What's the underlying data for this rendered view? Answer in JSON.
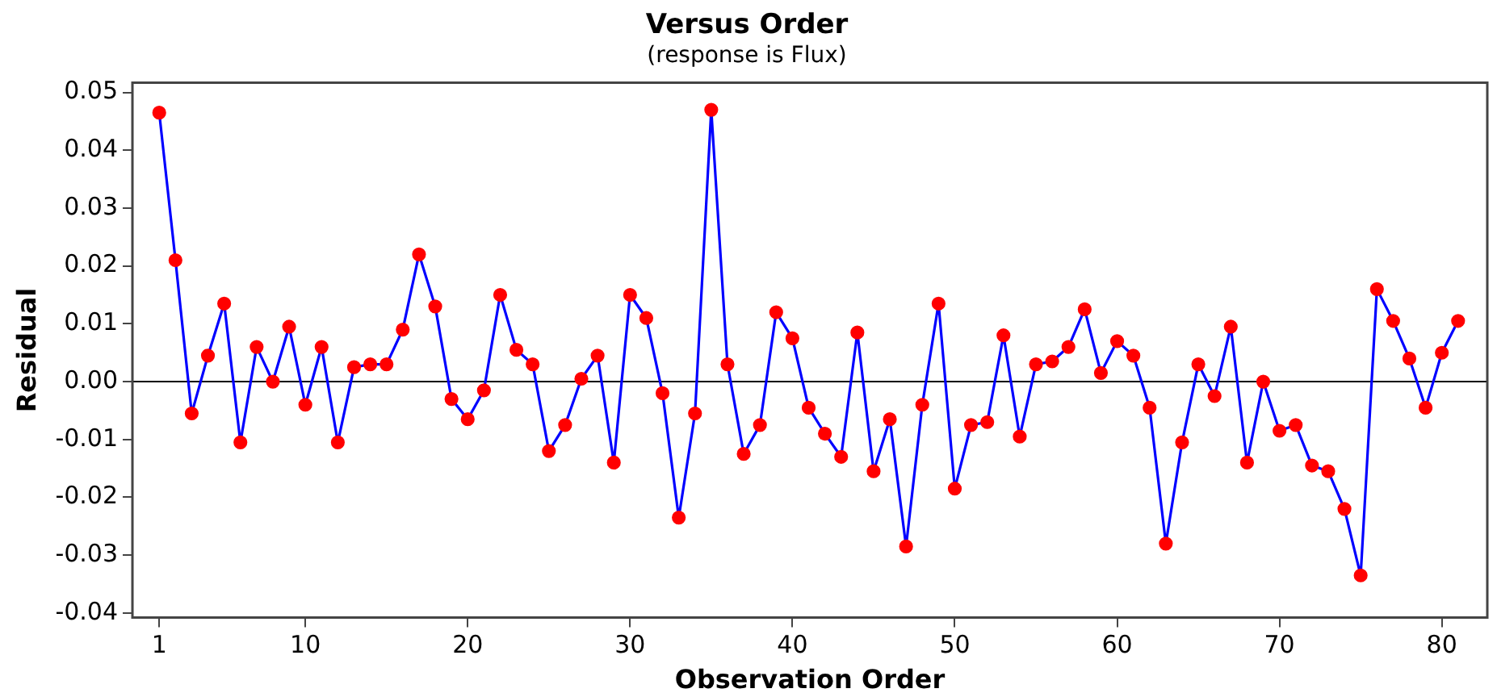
{
  "chart_data": {
    "type": "line",
    "title": "Versus Order",
    "subtitle": "(response is Flux)",
    "xlabel": "Observation Order",
    "ylabel": "Residual",
    "x": [
      1,
      2,
      3,
      4,
      5,
      6,
      7,
      8,
      9,
      10,
      11,
      12,
      13,
      14,
      15,
      16,
      17,
      18,
      19,
      20,
      21,
      22,
      23,
      24,
      25,
      26,
      27,
      28,
      29,
      30,
      31,
      32,
      33,
      34,
      35,
      36,
      37,
      38,
      39,
      40,
      41,
      42,
      43,
      44,
      45,
      46,
      47,
      48,
      49,
      50,
      51,
      52,
      53,
      54,
      55,
      56,
      57,
      58,
      59,
      60,
      61,
      62,
      63,
      64,
      65,
      66,
      67,
      68,
      69,
      70,
      71,
      72,
      73,
      74,
      75,
      76,
      77,
      78,
      79,
      80,
      81
    ],
    "series": [
      {
        "color": "#0000ff",
        "colors": [
          "#ff0000",
          "#ff0000",
          "#ff0000",
          "#ff0000",
          "#ff0000",
          "#ff0000",
          "#ff0000",
          "#ff0000",
          "#ff0000",
          "#ff0000",
          "#ff0000",
          "#ff0000",
          "#ff0000",
          "#ff0000",
          "#ff0000",
          "#ff0000",
          "#ff0000",
          "#ff0000",
          "#ff0000",
          "#ff0000",
          "#ff0000",
          "#ff0000",
          "#ff0000",
          "#ff0000",
          "#ff0000",
          "#ff0000",
          "#ff0000",
          "#ff0000",
          "#ff0000",
          "#ff0000",
          "#ff0000",
          "#ff0000",
          "#ff0000",
          "#ff0000",
          "#ff0000",
          "#ff0000",
          "#ff0000",
          "#ff0000",
          "#ff0000",
          "#ff0000",
          "#ff0000",
          "#ff0000",
          "#ff0000",
          "#ff0000",
          "#ff0000",
          "#ff0000",
          "#ff0000",
          "#ff0000",
          "#ff0000",
          "#ff0000",
          "#ff0000",
          "#ff0000",
          "#ff0000",
          "#ff0000",
          "#ff0000",
          "#ff0000",
          "#ff0000",
          "#ff0000",
          "#ff0000",
          "#ff0000",
          "#ff0000",
          "#ff0000",
          "#ff0000",
          "#ff0000",
          "#ff0000",
          "#ff0000",
          "#ff0000",
          "#ff0000",
          "#ff0000",
          "#ff0000",
          "#ff0000",
          "#ff0000",
          "#ff0000",
          "#ff0000",
          "#ff0000",
          "#ff0000",
          "#ff0000",
          "#ff0000",
          "#ff0000",
          "#ff0000",
          "#ff0000"
        ],
        "values": [
          0.0465,
          0.021,
          -0.0055,
          0.0045,
          0.0135,
          -0.0105,
          0.006,
          0.0,
          0.0095,
          -0.004,
          0.006,
          -0.0105,
          0.0025,
          0.003,
          0.003,
          0.009,
          0.022,
          0.013,
          -0.003,
          -0.0065,
          -0.0015,
          0.015,
          0.0055,
          0.003,
          -0.012,
          -0.0075,
          0.0005,
          0.0045,
          -0.014,
          0.015,
          0.011,
          -0.002,
          -0.0235,
          -0.0055,
          0.047,
          0.003,
          -0.0125,
          -0.0075,
          0.012,
          0.0075,
          -0.0045,
          -0.009,
          -0.013,
          0.0085,
          -0.0155,
          -0.0065,
          -0.0285,
          -0.004,
          0.0135,
          -0.0185,
          -0.0075,
          -0.007,
          0.008,
          -0.0095,
          0.003,
          0.0035,
          0.006,
          0.0125,
          0.0015,
          0.007,
          0.0045,
          -0.0045,
          -0.028,
          -0.0105,
          0.003,
          -0.0025,
          0.0095,
          -0.014,
          0.0,
          -0.0085,
          -0.0075,
          -0.0145,
          -0.0155,
          -0.022,
          -0.0335,
          0.016,
          0.0105,
          0.004,
          -0.0045,
          0.005,
          0.0105
        ]
      }
    ],
    "xlim": [
      -0.65,
      82.8
    ],
    "xticks": [
      1,
      10,
      20,
      30,
      40,
      50,
      60,
      70,
      80
    ],
    "ylim": [
      -0.0408,
      0.0517
    ],
    "yticks": [
      -0.04,
      -0.03,
      -0.02,
      -0.01,
      {
        "value": 0,
        "label": "0.00"
      },
      0.01,
      0.02,
      0.03,
      0.04,
      0.05
    ],
    "ref_lines": [
      {
        "axis": "y",
        "value": 0,
        "color": "#000000"
      }
    ],
    "grid": false,
    "legend": false,
    "marker": "circle",
    "line_style": "solid"
  }
}
